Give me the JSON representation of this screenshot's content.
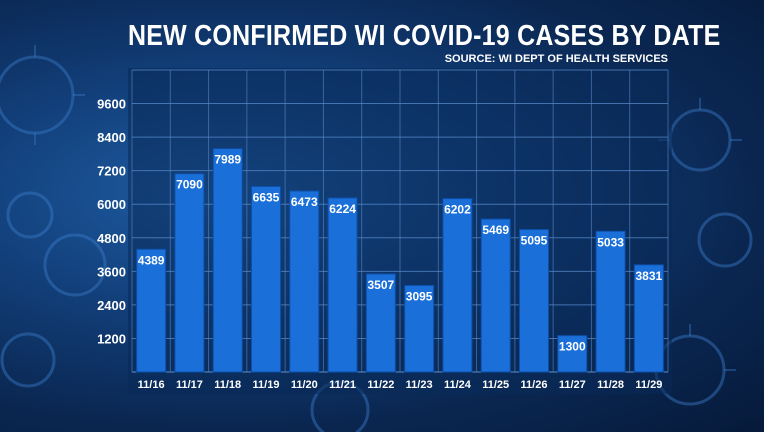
{
  "title": "NEW CONFIRMED WI COVID-19 CASES BY DATE",
  "source": "SOURCE: WI DEPT OF HEALTH SERVICES",
  "colors": {
    "bar": "#1a6fd9",
    "bar_edge": "#0d4fa8",
    "grid": "#5b8fd0",
    "text": "#ffffff",
    "panel": "#0a2a58"
  },
  "chart_data": {
    "type": "bar",
    "title": "NEW CONFIRMED WI COVID-19 CASES BY DATE",
    "xlabel": "",
    "ylabel": "",
    "ylim": [
      0,
      10800
    ],
    "yticks": [
      1200,
      2400,
      3600,
      4800,
      6000,
      7200,
      8400,
      9600
    ],
    "ytick_labels": [
      "1200",
      "2400",
      "3600",
      "4800",
      "6000",
      "7200",
      "8400",
      "9600"
    ],
    "categories": [
      "11/16",
      "11/17",
      "11/18",
      "11/19",
      "11/20",
      "11/21",
      "11/22",
      "11/23",
      "11/24",
      "11/25",
      "11/26",
      "11/27",
      "11/28",
      "11/29"
    ],
    "values": [
      4389,
      7090,
      7989,
      6635,
      6473,
      6224,
      3507,
      3095,
      6202,
      5469,
      5095,
      1300,
      5033,
      3831
    ],
    "value_labels": [
      "4389",
      "7090",
      "7989",
      "6635",
      "6473",
      "6224",
      "3507",
      "3095",
      "6202",
      "5469",
      "5095",
      "1300",
      "5033",
      "3831"
    ],
    "grid": true,
    "legend": "none"
  }
}
